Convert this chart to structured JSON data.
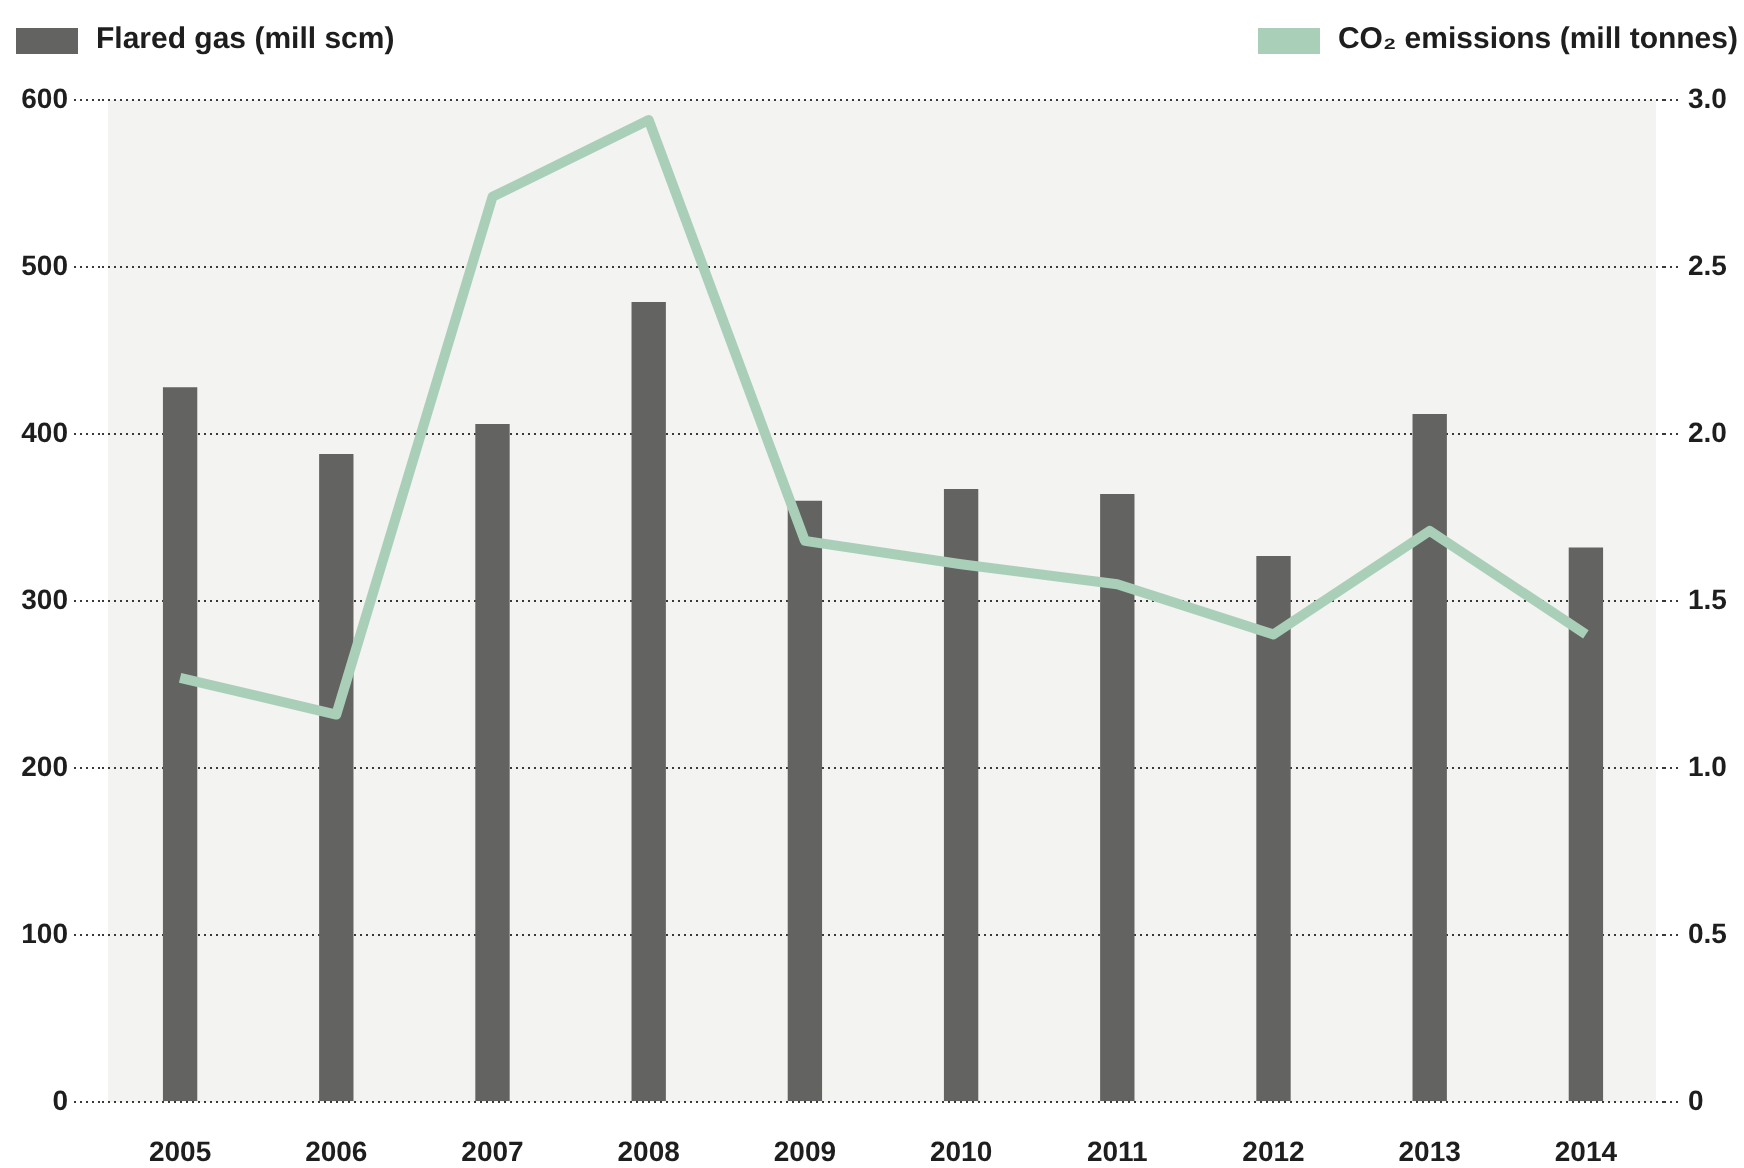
{
  "chart_data": {
    "type": "bar",
    "categories": [
      "2005",
      "2006",
      "2007",
      "2008",
      "2009",
      "2010",
      "2011",
      "2012",
      "2013",
      "2014"
    ],
    "series": [
      {
        "name": "Flared gas (mill scm)",
        "color": "#636361",
        "values": [
          428,
          388,
          406,
          479,
          360,
          367,
          364,
          327,
          412,
          332
        ]
      },
      {
        "name": "CO₂ emissions (mill tonnes)",
        "type": "line",
        "axis": "y2",
        "color": "#aacfb9",
        "values": [
          1.27,
          1.16,
          2.71,
          2.94,
          1.68,
          1.61,
          1.55,
          1.4,
          1.71,
          1.4
        ]
      }
    ],
    "ylim": [
      0,
      600
    ],
    "yticks": [
      0,
      100,
      200,
      300,
      400,
      500,
      600
    ],
    "y2lim": [
      0,
      3
    ],
    "y2ticks": [
      0,
      0.5,
      {
        "value": 1,
        "label": "1.0"
      },
      1.5,
      {
        "value": 2,
        "label": "2.0"
      },
      2.5,
      {
        "value": 3,
        "label": "3.0"
      }
    ],
    "grid": "y",
    "legend": "top",
    "marker": "none"
  }
}
